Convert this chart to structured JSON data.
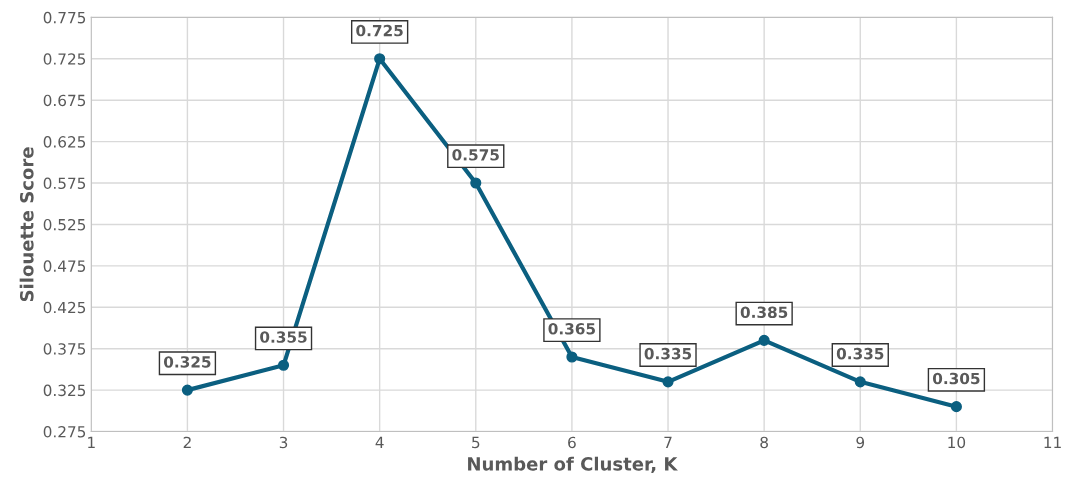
{
  "chart_data": {
    "type": "line",
    "xlabel": "Number of Cluster, K",
    "ylabel": "Silouette Score",
    "x": [
      2,
      3,
      4,
      5,
      6,
      7,
      8,
      9,
      10
    ],
    "series": [
      {
        "color": "#0b5f80",
        "values": [
          0.325,
          0.355,
          0.725,
          0.575,
          0.365,
          0.335,
          0.385,
          0.335,
          0.305
        ]
      }
    ],
    "xlim": [
      1,
      11
    ],
    "xticks": [
      1,
      2,
      3,
      4,
      5,
      6,
      7,
      8,
      9,
      10,
      11
    ],
    "ylim": [
      0.275,
      0.775
    ],
    "yticks": [
      0.275,
      0.325,
      0.375,
      0.425,
      0.475,
      0.525,
      0.575,
      0.625,
      0.675,
      0.725,
      0.775
    ],
    "grid": true,
    "marker": "circle",
    "line_style": "solid",
    "data_labels": true
  }
}
